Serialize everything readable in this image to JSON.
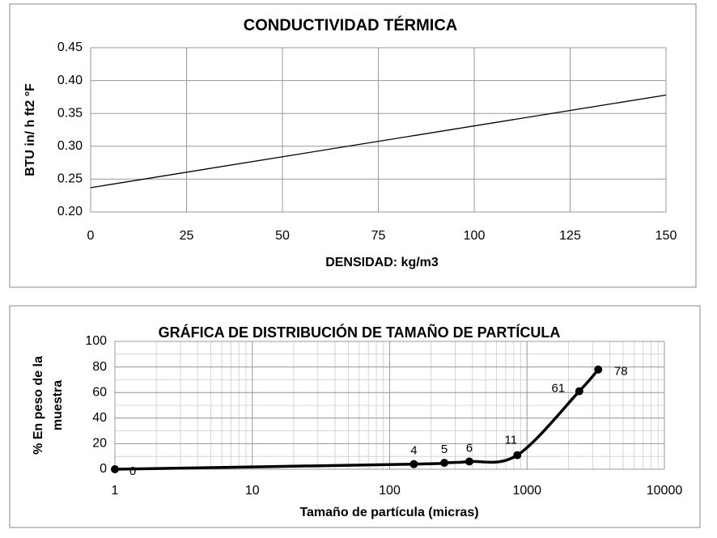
{
  "chart_data": [
    {
      "type": "line",
      "title": "CONDUCTIVIDAD TÉRMICA",
      "x_label": "DENSIDAD: kg/m3",
      "y_label": "BTU in/ h ft2 °F",
      "x": [
        0,
        150
      ],
      "values": [
        0.237,
        0.378
      ],
      "color": "#000000",
      "xlim": [
        0,
        150
      ],
      "xticks": [
        0,
        25,
        50,
        75,
        100,
        125,
        150
      ],
      "ylim": [
        0.2,
        0.45
      ],
      "yticks": [
        {
          "value": 0.2,
          "label": "0.20"
        },
        0.25,
        {
          "value": 0.3,
          "label": "0.30"
        },
        0.35,
        {
          "value": 0.4,
          "label": "0.40"
        },
        0.45
      ],
      "grid": true
    },
    {
      "type": "line",
      "title": "GRÁFICA DE DISTRIBUCIÓN DE TAMAÑO DE PARTÍCULA",
      "x_label": "Tamaño de partícula (micras)",
      "y_label": [
        "% En peso de la",
        "muestra"
      ],
      "x": [
        1,
        150,
        250,
        380,
        850,
        2400,
        3300
      ],
      "values": [
        0,
        4,
        5,
        6,
        11,
        61,
        78
      ],
      "color": "#000000",
      "xscale": "log",
      "xlim": [
        1,
        10000
      ],
      "xticks": [
        1,
        10,
        100,
        1000,
        10000
      ],
      "ylim": [
        0,
        100
      ],
      "yticks": [
        0,
        20,
        40,
        60,
        80,
        100
      ],
      "grid": true,
      "smooth": true,
      "markers": true
    }
  ]
}
